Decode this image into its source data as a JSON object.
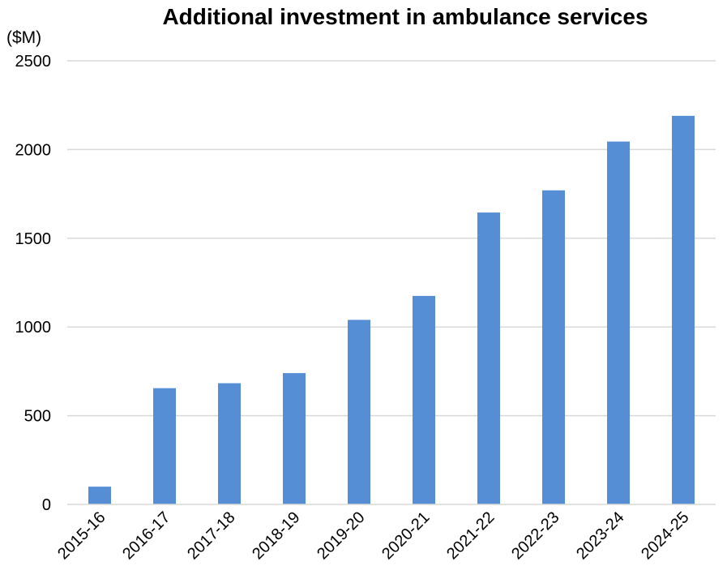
{
  "chart_data": {
    "type": "bar",
    "title": "Additional investment in ambulance services",
    "ylabel": "($M)",
    "xlabel": "",
    "categories": [
      "2015-16",
      "2016-17",
      "2017-18",
      "2018-19",
      "2019-20",
      "2020-21",
      "2021-22",
      "2022-23",
      "2023-24",
      "2024-25"
    ],
    "values": [
      100,
      655,
      683,
      740,
      1040,
      1175,
      1645,
      1770,
      2045,
      2190
    ],
    "ylim": [
      0,
      2500
    ],
    "yticks": [
      "0",
      "500",
      "1000",
      "1500",
      "2000",
      "2500"
    ],
    "grid": true,
    "legend": "none",
    "bar_color": "#558ed5"
  }
}
